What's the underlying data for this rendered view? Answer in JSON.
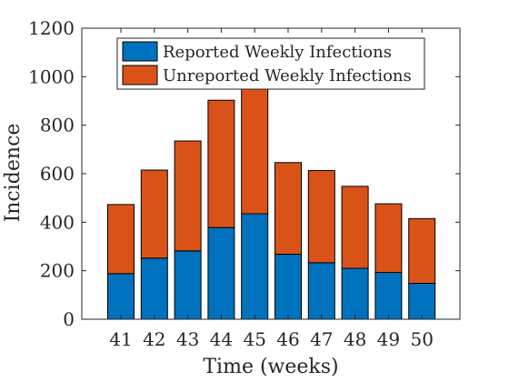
{
  "chart_data": {
    "type": "bar",
    "stacked": true,
    "categories": [
      "41",
      "42",
      "43",
      "44",
      "45",
      "46",
      "47",
      "48",
      "49",
      "50"
    ],
    "series": [
      {
        "name": "Reported Weekly Infections",
        "color": "#0072BD",
        "values": [
          188,
          252,
          282,
          378,
          435,
          268,
          233,
          210,
          193,
          148
        ]
      },
      {
        "name": "Unreported Weekly Infections",
        "color": "#D95319",
        "values": [
          285,
          363,
          453,
          525,
          515,
          378,
          380,
          338,
          283,
          267
        ]
      }
    ],
    "xlabel": "Time  (weeks)",
    "ylabel": "Incidence",
    "ylim": [
      0,
      1200
    ],
    "yticks": [
      0,
      200,
      400,
      600,
      800,
      1000,
      1200
    ],
    "grid": false,
    "legend_position": "top-center"
  }
}
